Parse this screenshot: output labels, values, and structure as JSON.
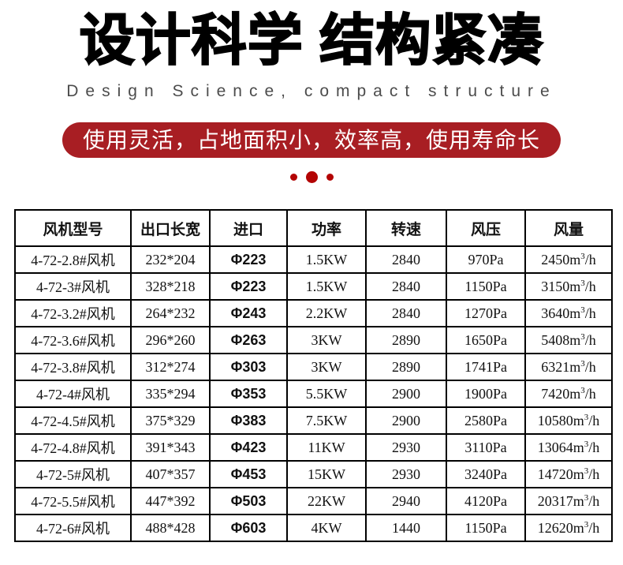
{
  "page": {
    "title": "设计科学 结构紧凑",
    "subtitle": "Design Science, compact structure",
    "banner": "使用灵活，占地面积小，效率高，使用寿命长"
  },
  "colors": {
    "accent_red": "#a81e23",
    "dot_red": "#b30404",
    "title_black": "#000000",
    "subtitle_gray": "#4c4c4c",
    "table_border": "#000000"
  },
  "table": {
    "columns": [
      "风机型号",
      "出口长宽",
      "进口",
      "功率",
      "转速",
      "风压",
      "风量"
    ],
    "rows": [
      [
        "4-72-2.8#风机",
        "232*204",
        "Φ223",
        "1.5KW",
        "2840",
        "970Pa",
        "2450m³/h"
      ],
      [
        "4-72-3#风机",
        "328*218",
        "Φ223",
        "1.5KW",
        "2840",
        "1150Pa",
        "3150m³/h"
      ],
      [
        "4-72-3.2#风机",
        "264*232",
        "Φ243",
        "2.2KW",
        "2840",
        "1270Pa",
        "3640m³/h"
      ],
      [
        "4-72-3.6#风机",
        "296*260",
        "Φ263",
        "3KW",
        "2890",
        "1650Pa",
        "5408m³/h"
      ],
      [
        "4-72-3.8#风机",
        "312*274",
        "Φ303",
        "3KW",
        "2890",
        "1741Pa",
        "6321m³/h"
      ],
      [
        "4-72-4#风机",
        "335*294",
        "Φ353",
        "5.5KW",
        "2900",
        "1900Pa",
        "7420m³/h"
      ],
      [
        "4-72-4.5#风机",
        "375*329",
        "Φ383",
        "7.5KW",
        "2900",
        "2580Pa",
        "10580m³/h"
      ],
      [
        "4-72-4.8#风机",
        "391*343",
        "Φ423",
        "11KW",
        "2930",
        "3110Pa",
        "13064m³/h"
      ],
      [
        "4-72-5#风机",
        "407*357",
        "Φ453",
        "15KW",
        "2930",
        "3240Pa",
        "14720m³/h"
      ],
      [
        "4-72-5.5#风机",
        "447*392",
        "Φ503",
        "22KW",
        "2940",
        "4120Pa",
        "20317m³/h"
      ],
      [
        "4-72-6#风机",
        "488*428",
        "Φ603",
        "4KW",
        "1440",
        "1150Pa",
        "12620m³/h"
      ]
    ]
  }
}
